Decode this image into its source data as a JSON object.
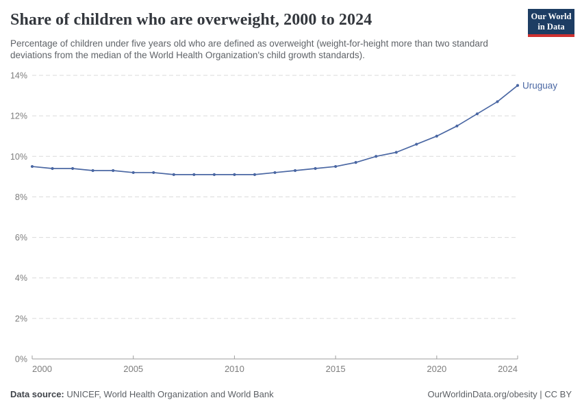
{
  "header": {
    "title": "Share of children who are overweight, 2000 to 2024",
    "subtitle": "Percentage of children under five years old who are defined as overweight (weight-for-height more than two standard deviations from the median of the World Health Organization's child growth standards)."
  },
  "logo": {
    "line1": "Our World",
    "line2": "in Data",
    "bg_color": "#1d3d63",
    "accent_color": "#cf3130"
  },
  "chart_data": {
    "type": "line",
    "title": "Share of children who are overweight, 2000 to 2024",
    "x": [
      2000,
      2001,
      2002,
      2003,
      2004,
      2005,
      2006,
      2007,
      2008,
      2009,
      2010,
      2011,
      2012,
      2013,
      2014,
      2015,
      2016,
      2017,
      2018,
      2019,
      2020,
      2021,
      2022,
      2023,
      2024
    ],
    "series": [
      {
        "name": "Uruguay",
        "color": "#4a67a3",
        "values": [
          9.5,
          9.4,
          9.4,
          9.3,
          9.3,
          9.2,
          9.2,
          9.1,
          9.1,
          9.1,
          9.1,
          9.1,
          9.2,
          9.3,
          9.4,
          9.5,
          9.7,
          10.0,
          10.2,
          10.6,
          11.0,
          11.5,
          12.1,
          12.7,
          13.5
        ]
      }
    ],
    "xlabel": "",
    "ylabel": "",
    "xlim": [
      2000,
      2024
    ],
    "ylim": [
      0,
      14
    ],
    "yticks": [
      0,
      2,
      4,
      6,
      8,
      10,
      12,
      14
    ],
    "ytick_suffix": "%",
    "xticks": [
      2000,
      2005,
      2010,
      2015,
      2020,
      2024
    ],
    "grid": "horizontal-dashed",
    "legend": "line-end-label"
  },
  "colors": {
    "line": "#4a67a3",
    "grid": "#dadada",
    "axis": "#9d9d9d",
    "tick_label": "#7d7d7d"
  },
  "footer": {
    "source_label": "Data source:",
    "source_value": " UNICEF, World Health Organization and World Bank",
    "license": "OurWorldinData.org/obesity | CC BY"
  }
}
